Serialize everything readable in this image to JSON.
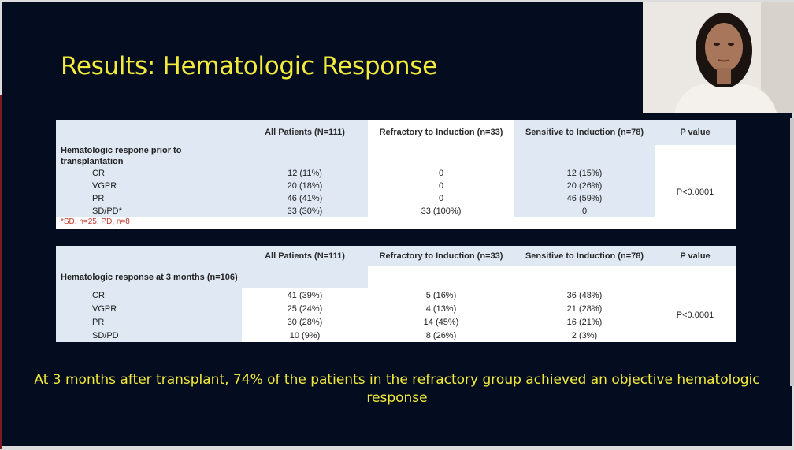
{
  "slide": {
    "title": "Results: Hematologic Response",
    "caption": "At 3 months after transplant, 74% of the patients in the refractory group achieved an objective hematologic response"
  },
  "table1": {
    "headers": [
      "All Patients (N=111)",
      "Refractory to Induction (n=33)",
      "Sensitive to Induction (n=78)",
      "P value"
    ],
    "section_label": "Hematologic respone prior to transplantation",
    "rows": [
      {
        "label": "CR",
        "all": "12 (11%)",
        "refractory": "0",
        "sensitive": "12 (15%)"
      },
      {
        "label": "VGPR",
        "all": "20 (18%)",
        "refractory": "0",
        "sensitive": "20 (26%)"
      },
      {
        "label": "PR",
        "all": "46 (41%)",
        "refractory": "0",
        "sensitive": "46 (59%)"
      },
      {
        "label": "SD/PD*",
        "all": "33 (30%)",
        "refractory": "33 (100%)",
        "sensitive": "0"
      }
    ],
    "p_value": "P<0.0001",
    "footnote": "*SD, n=25; PD, n=8"
  },
  "table2": {
    "headers": [
      "All Patients (N=111)",
      "Refractory to Induction (n=33)",
      "Sensitive to Induction (n=78)",
      "P value"
    ],
    "section_label": "Hematologic response at 3 months (n=106)",
    "rows": [
      {
        "label": "CR",
        "all": "41 (39%)",
        "refractory": "5 (16%)",
        "sensitive": "36 (48%)"
      },
      {
        "label": "VGPR",
        "all": "25 (24%)",
        "refractory": "4 (13%)",
        "sensitive": "21 (28%)"
      },
      {
        "label": "PR",
        "all": "30 (28%)",
        "refractory": "14 (45%)",
        "sensitive": "16 (21%)"
      },
      {
        "label": "SD/PD",
        "all": "10 (9%)",
        "refractory": "8 (26%)",
        "sensitive": "2 (3%)"
      }
    ],
    "p_value": "P<0.0001"
  },
  "colors": {
    "slide_bg": "#030d1f",
    "title": "#f3ea3b",
    "header_fill": "#dfe8f3",
    "footnote": "#c0392b"
  }
}
